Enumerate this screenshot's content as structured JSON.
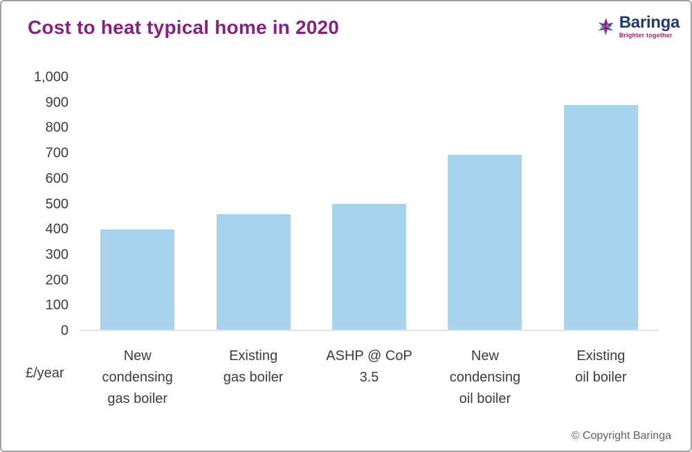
{
  "header": {
    "title": "Cost to heat typical home in 2020",
    "logo": {
      "name": "Baringa",
      "tagline": "Brighter together"
    }
  },
  "chart_data": {
    "type": "bar",
    "title": "Cost to heat typical home in 2020",
    "categories": [
      "New condensing gas boiler",
      "Existing gas boiler",
      "ASHP @ CoP 3.5",
      "New condensing oil boiler",
      "Existing oil boiler"
    ],
    "category_lines": [
      [
        "New",
        "condensing",
        "gas boiler"
      ],
      [
        "Existing",
        "gas boiler"
      ],
      [
        "ASHP @ CoP",
        "3.5"
      ],
      [
        "New",
        "condensing",
        "oil boiler"
      ],
      [
        "Existing",
        "oil boiler"
      ]
    ],
    "values": [
      395,
      455,
      495,
      690,
      885
    ],
    "xlabel": "",
    "ylabel": "£/year",
    "ylim": [
      0,
      1000
    ],
    "ytick_interval": 100,
    "yticks": [
      "1,000",
      "900",
      "800",
      "700",
      "600",
      "500",
      "400",
      "300",
      "200",
      "100",
      "0"
    ],
    "grid": false,
    "legend": false,
    "bar_color": "#a7d3ed"
  },
  "footer": {
    "copyright": "© Copyright Baringa"
  },
  "colors": {
    "title_purple": "#862181",
    "logo_navy": "#213a72",
    "logo_magenta": "#c4117d",
    "bar_blue": "#a7d3ed",
    "axis_line_gray": "#e3e3e3",
    "label_text": "#3b3b3b",
    "copyright_gray": "#5f5f5f",
    "canvas_border": "#a0a0a0"
  }
}
